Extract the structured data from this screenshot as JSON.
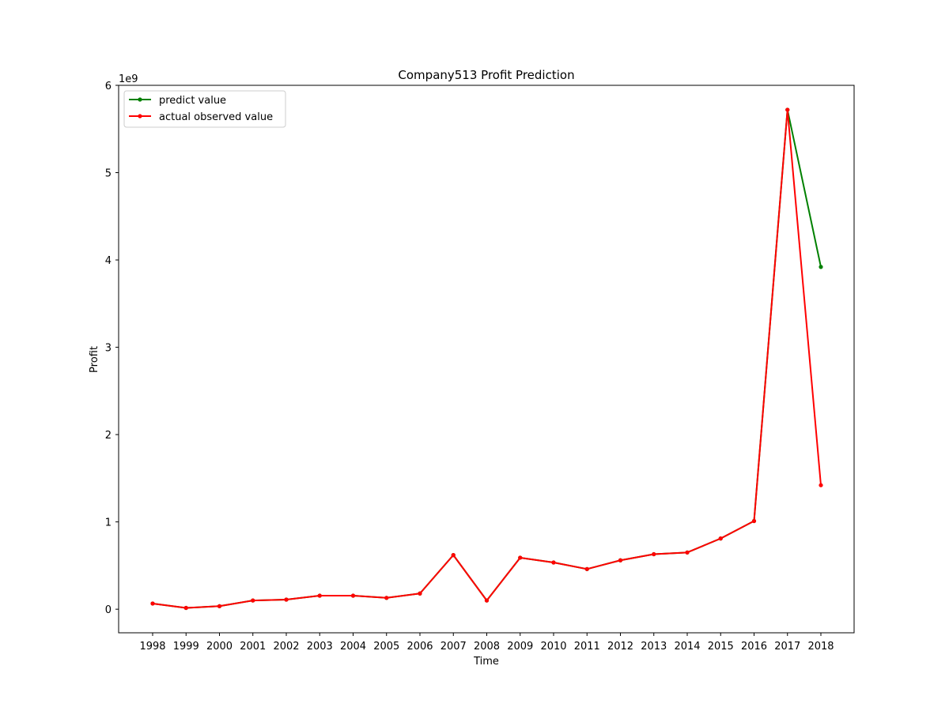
{
  "chart_data": {
    "type": "line",
    "title": "Company513 Profit Prediction",
    "xlabel": "Time",
    "ylabel": "Profit",
    "y_scale_label": "1e9",
    "y_scale": 1000000000,
    "categories": [
      "1998",
      "1999",
      "2000",
      "2001",
      "2002",
      "2003",
      "2004",
      "2005",
      "2006",
      "2007",
      "2008",
      "2009",
      "2010",
      "2011",
      "2012",
      "2013",
      "2014",
      "2015",
      "2016",
      "2017",
      "2018"
    ],
    "ylim": [
      -0.27,
      6.0
    ],
    "yticks": [
      0,
      1,
      2,
      3,
      4,
      5,
      6
    ],
    "grid": false,
    "legend": "upper-left",
    "series": [
      {
        "name": "predict value",
        "color": "#008000",
        "values": [
          0.065,
          0.015,
          0.035,
          0.1,
          0.11,
          0.155,
          0.155,
          0.13,
          0.18,
          0.62,
          0.1,
          0.59,
          0.535,
          0.46,
          0.56,
          0.63,
          0.65,
          0.81,
          1.01,
          5.72,
          3.92
        ]
      },
      {
        "name": "actual observed value",
        "color": "#ff0000",
        "values": [
          0.065,
          0.015,
          0.035,
          0.1,
          0.11,
          0.155,
          0.155,
          0.13,
          0.18,
          0.62,
          0.1,
          0.59,
          0.535,
          0.46,
          0.56,
          0.63,
          0.65,
          0.81,
          1.01,
          5.72,
          1.42
        ]
      }
    ]
  }
}
